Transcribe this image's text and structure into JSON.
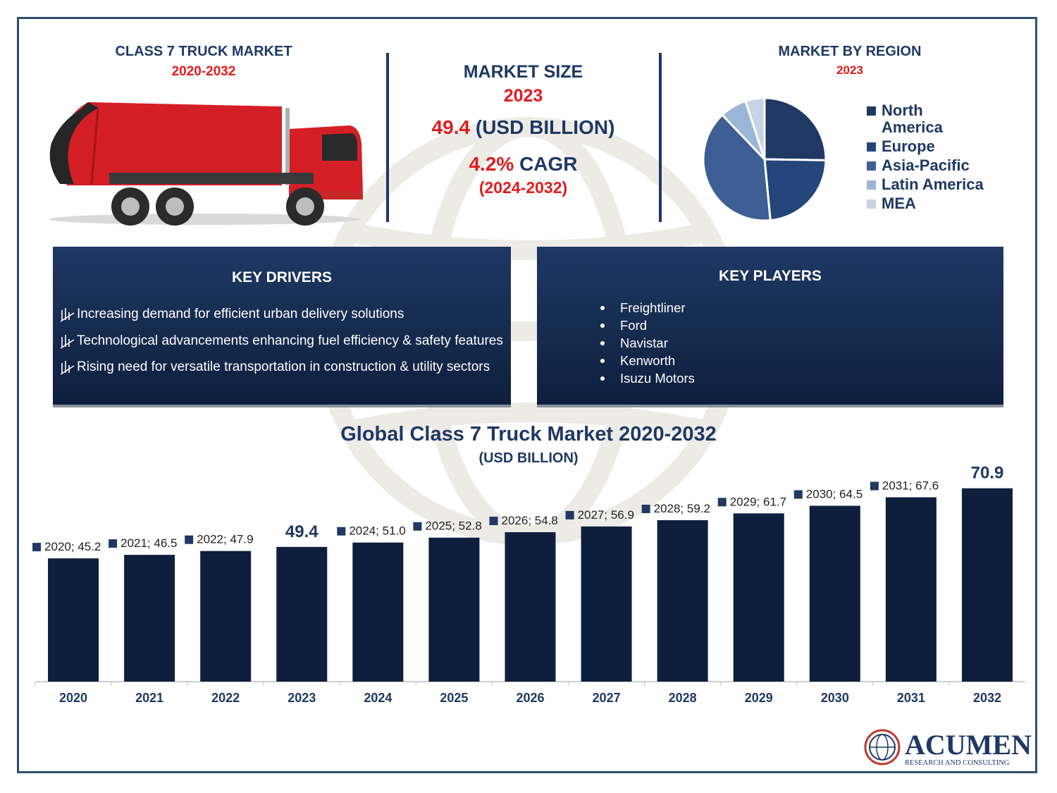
{
  "header": {
    "market_title": "CLASS 7 TRUCK MARKET",
    "market_years": "2020-2032",
    "size_label": "MARKET SIZE",
    "size_year": "2023",
    "size_value": "49.4",
    "size_unit": "(USD BILLION)",
    "cagr_value": "4.2%",
    "cagr_label": "CAGR",
    "cagr_period": "(2024-2032)",
    "region_title": "MARKET BY REGION",
    "region_year": "2023"
  },
  "region_pie": {
    "type": "pie",
    "labels": [
      "North America",
      "Europe",
      "Asia-Pacific",
      "Latin America",
      "MEA"
    ],
    "values": [
      25,
      23,
      39,
      7,
      5
    ],
    "colors": [
      "#1f3864",
      "#24467a",
      "#3d5f94",
      "#9bb5d6",
      "#c8d3e3"
    ]
  },
  "key_drivers": {
    "title": "KEY DRIVERS",
    "items": [
      "Increasing demand for efficient urban delivery solutions",
      "Technological advancements enhancing fuel efficiency & safety features",
      "Rising need for versatile transportation in construction & utility sectors"
    ]
  },
  "key_players": {
    "title": "KEY PLAYERS",
    "items": [
      "Freightliner",
      "Ford",
      "Navistar",
      "Kenworth",
      "Isuzu Motors"
    ]
  },
  "chart_data": {
    "type": "bar",
    "title": "Global Class 7 Truck Market 2020-2032",
    "subtitle": "(USD BILLION)",
    "categories": [
      "2020",
      "2021",
      "2022",
      "2023",
      "2024",
      "2025",
      "2026",
      "2027",
      "2028",
      "2029",
      "2030",
      "2031",
      "2032"
    ],
    "values": [
      45.2,
      46.5,
      47.9,
      49.4,
      51.0,
      52.8,
      54.8,
      56.9,
      59.2,
      61.7,
      64.5,
      67.6,
      70.9
    ],
    "data_labels": [
      "2020; 45.2",
      "2021; 46.5",
      "2022; 47.9",
      "49.4",
      "2024; 51.0",
      "2025; 52.8",
      "2026; 54.8",
      "2027; 56.9",
      "2028; 59.2",
      "2029; 61.7",
      "2030; 64.5",
      "2031; 67.6",
      "70.9"
    ],
    "bar_color": "#0e1f3d",
    "grid": false
  },
  "brand": {
    "name": "ACUMEN",
    "tagline": "RESEARCH AND CONSULTING"
  },
  "colors": {
    "navy": "#1f3864",
    "red": "#e11c1c",
    "truck_red": "#d41f26"
  }
}
